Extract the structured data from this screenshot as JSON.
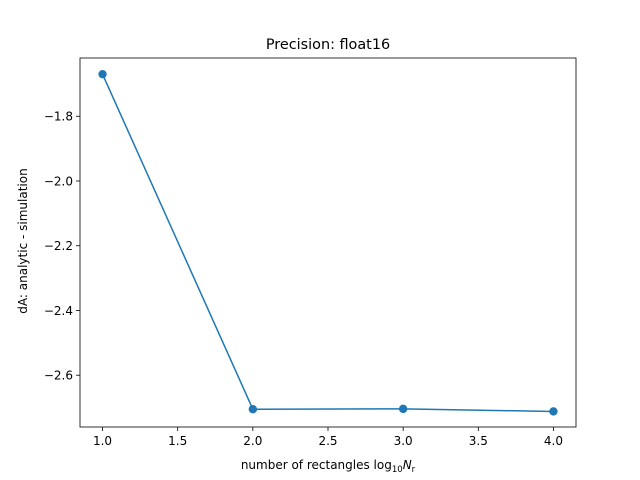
{
  "chart_data": {
    "type": "line",
    "title": "Precision: float16",
    "xlabel": {
      "prefix": "number of rectangles log",
      "sub": "10",
      "var": "N",
      "var_sub": "r"
    },
    "ylabel": "dA: analytic - simulation",
    "x": [
      1.0,
      2.0,
      3.0,
      4.0
    ],
    "series": [
      {
        "values": [
          -1.67,
          -2.705,
          -2.704,
          -2.712
        ],
        "color": "#1f77b4",
        "marker": "circle"
      }
    ],
    "xlim": [
      0.85,
      4.15
    ],
    "ylim": [
      -2.76,
      -1.62
    ],
    "xticks": [
      1.0,
      1.5,
      2.0,
      2.5,
      3.0,
      3.5,
      4.0
    ],
    "xtick_labels": [
      "1.0",
      "1.5",
      "2.0",
      "2.5",
      "3.0",
      "3.5",
      "4.0"
    ],
    "yticks": [
      -2.6,
      -2.4,
      -2.2,
      -2.0,
      -1.8
    ],
    "ytick_labels": [
      "−2.6",
      "−2.4",
      "−2.2",
      "−2.0",
      "−1.8"
    ],
    "grid": false,
    "legend": false
  }
}
